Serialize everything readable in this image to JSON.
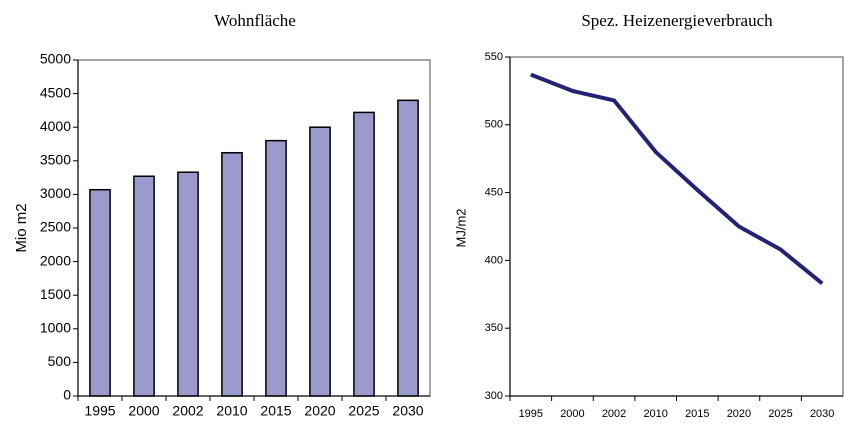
{
  "chart_data": [
    {
      "type": "bar",
      "title": "Wohnfläche",
      "ylabel": "Mio m2",
      "categories": [
        "1995",
        "2000",
        "2002",
        "2010",
        "2015",
        "2020",
        "2025",
        "2030"
      ],
      "values": [
        3070,
        3270,
        3330,
        3620,
        3800,
        4000,
        4220,
        4400
      ],
      "color": "#9999cc",
      "ylim": [
        0,
        5000
      ],
      "yticks": [
        0,
        500,
        1000,
        1500,
        2000,
        2500,
        3000,
        3500,
        4000,
        4500,
        5000
      ]
    },
    {
      "type": "line",
      "title": "Spez. Heizenergieverbrauch",
      "ylabel": "MJ/m2",
      "categories": [
        "1995",
        "2000",
        "2002",
        "2010",
        "2015",
        "2020",
        "2025",
        "2030"
      ],
      "values": [
        537,
        525,
        518,
        480,
        452,
        425,
        408,
        383
      ],
      "color": "#222277",
      "ylim": [
        300,
        550
      ],
      "yticks": [
        300,
        350,
        400,
        450,
        500,
        550
      ]
    }
  ]
}
